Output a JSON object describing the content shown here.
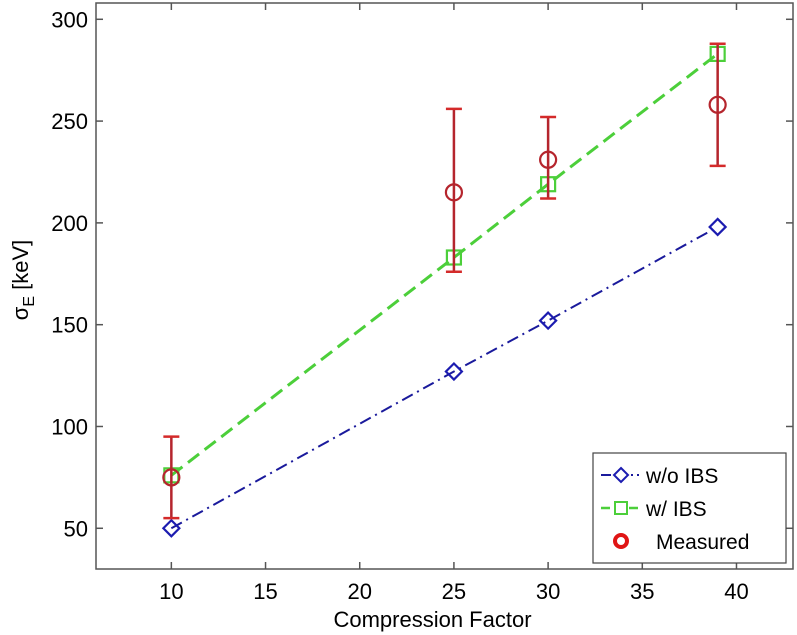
{
  "chart_data": {
    "type": "line",
    "title": "",
    "xlabel": "Compression Factor",
    "ylabel": "σ_E [keV]",
    "ylabel_main": "σ",
    "ylabel_sub": "E",
    "ylabel_unit": " [keV]",
    "xlim": [
      6,
      43
    ],
    "ylim": [
      30,
      308
    ],
    "xticks": [
      10,
      15,
      20,
      25,
      30,
      35,
      40
    ],
    "yticks": [
      50,
      100,
      150,
      200,
      250,
      300
    ],
    "grid": false,
    "legend_position": "lower right",
    "series": [
      {
        "name": "w/o IBS",
        "color": "#1a1a9c",
        "marker": "diamond",
        "linestyle": "dash-dot",
        "x": [
          10,
          25,
          30,
          39
        ],
        "values": [
          50,
          127,
          152,
          198
        ]
      },
      {
        "name": "w/ IBS",
        "color": "#4ccf3a",
        "marker": "square",
        "linestyle": "dashed",
        "x": [
          10,
          25,
          30,
          39
        ],
        "values": [
          76,
          183,
          219,
          283
        ]
      },
      {
        "name": "Measured",
        "color": "#c0262c",
        "marker": "circle",
        "linestyle": "none",
        "x": [
          10,
          25,
          30,
          39
        ],
        "values": [
          75,
          215,
          231,
          258
        ],
        "error_low": [
          55,
          176,
          212,
          228
        ],
        "error_high": [
          95,
          256,
          252,
          288
        ]
      }
    ]
  }
}
